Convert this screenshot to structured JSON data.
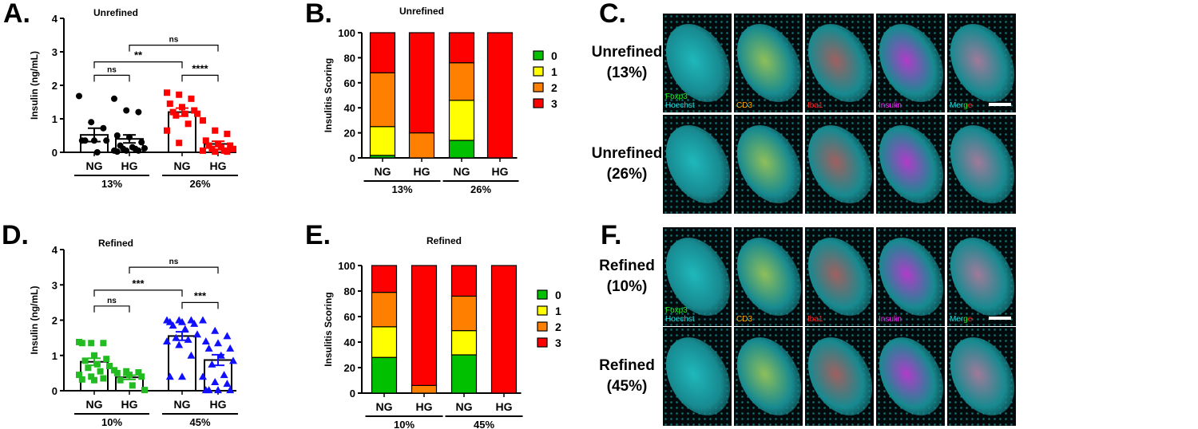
{
  "panel_letters": {
    "A": "A.",
    "B": "B.",
    "C": "C.",
    "D": "D.",
    "E": "E.",
    "F": "F."
  },
  "colors": {
    "score0": "#00c000",
    "score1": "#ffff00",
    "score2": "#ff8000",
    "score3": "#ff0000",
    "black": "#000000",
    "red": "#ff0000",
    "green": "#22bb22",
    "blue": "#1010ff"
  },
  "chart_data": [
    {
      "id": "A",
      "type": "scatter-bar",
      "title": "Unrefined",
      "ylabel": "Insulin (ng/mL)",
      "ylim": [
        0,
        4
      ],
      "yticks": [
        0,
        1,
        2,
        3,
        4
      ],
      "categories": [
        "NG",
        "HG",
        "NG",
        "HG"
      ],
      "groups": [
        {
          "label": "13%",
          "span": [
            0,
            1
          ]
        },
        {
          "label": "26%",
          "span": [
            2,
            3
          ]
        }
      ],
      "series": [
        {
          "category": 0,
          "color": "#000000",
          "marker": "circle",
          "mean": 0.52,
          "sem": 0.2,
          "points": [
            1.68,
            0.9,
            0.72,
            0.35,
            0.35,
            0.35,
            0.35,
            0.0
          ]
        },
        {
          "category": 1,
          "color": "#000000",
          "marker": "circle",
          "mean": 0.4,
          "sem": 0.12,
          "points": [
            1.6,
            1.25,
            1.2,
            0.5,
            0.45,
            0.3,
            0.2,
            0.15,
            0.12,
            0.1,
            0.1,
            0.05,
            0.05,
            0.05,
            0.02
          ]
        },
        {
          "category": 2,
          "color": "#ff0000",
          "marker": "square",
          "mean": 1.2,
          "sem": 0.12,
          "points": [
            1.78,
            1.72,
            1.6,
            1.45,
            1.35,
            1.25,
            1.2,
            1.15,
            1.15,
            1.1,
            0.85,
            0.65,
            0.28
          ]
        },
        {
          "category": 3,
          "color": "#ff0000",
          "marker": "square",
          "mean": 0.25,
          "sem": 0.08,
          "points": [
            0.95,
            0.65,
            0.55,
            0.35,
            0.25,
            0.2,
            0.2,
            0.15,
            0.1,
            0.1,
            0.05,
            0.05,
            0.02,
            0.02
          ]
        }
      ],
      "significance": [
        {
          "from": 0,
          "to": 1,
          "y": 2.3,
          "label": "ns"
        },
        {
          "from": 0,
          "to": 2,
          "y": 2.7,
          "label": "**"
        },
        {
          "from": 2,
          "to": 3,
          "y": 2.3,
          "label": "****"
        },
        {
          "from": 1,
          "to": 3,
          "y": 3.2,
          "label": "ns"
        }
      ]
    },
    {
      "id": "B",
      "type": "stacked-bar",
      "title": "Unrefined",
      "ylabel": "Insulitis Scoring",
      "ylim": [
        0,
        100
      ],
      "yticks": [
        0,
        20,
        40,
        60,
        80,
        100
      ],
      "categories": [
        "NG",
        "HG",
        "NG",
        "HG"
      ],
      "groups": [
        {
          "label": "13%",
          "span": [
            0,
            1
          ]
        },
        {
          "label": "26%",
          "span": [
            2,
            3
          ]
        }
      ],
      "legend": [
        "0",
        "1",
        "2",
        "3"
      ],
      "legend_position": "right",
      "values": [
        [
          2,
          23,
          43,
          32
        ],
        [
          0,
          0,
          20,
          80
        ],
        [
          14,
          32,
          30,
          24
        ],
        [
          0,
          0,
          0,
          100
        ]
      ]
    },
    {
      "id": "D",
      "type": "scatter-bar",
      "title": "Refined",
      "ylabel": "Insulin (ng/mL)",
      "ylim": [
        0,
        4
      ],
      "yticks": [
        0,
        1,
        2,
        3,
        4
      ],
      "categories": [
        "NG",
        "HG",
        "NG",
        "HG"
      ],
      "groups": [
        {
          "label": "10%",
          "span": [
            0,
            1
          ]
        },
        {
          "label": "45%",
          "span": [
            2,
            3
          ]
        }
      ],
      "series": [
        {
          "category": 0,
          "color": "#22bb22",
          "marker": "square",
          "mean": 0.82,
          "sem": 0.1,
          "points": [
            1.38,
            1.35,
            1.35,
            1.35,
            1.0,
            0.9,
            0.85,
            0.75,
            0.7,
            0.65,
            0.55,
            0.45,
            0.4,
            0.35,
            0.32,
            0.3
          ]
        },
        {
          "category": 1,
          "color": "#22bb22",
          "marker": "square",
          "mean": 0.38,
          "sem": 0.06,
          "points": [
            0.58,
            0.55,
            0.52,
            0.5,
            0.45,
            0.4,
            0.3,
            0.15,
            0.02
          ]
        },
        {
          "category": 2,
          "color": "#1010ff",
          "marker": "triangle",
          "mean": 1.55,
          "sem": 0.12,
          "points": [
            2.0,
            2.0,
            2.0,
            1.95,
            1.95,
            1.9,
            1.85,
            1.75,
            1.6,
            1.5,
            1.45,
            1.4,
            1.3,
            1.0,
            0.4,
            0.4
          ]
        },
        {
          "category": 3,
          "color": "#1010ff",
          "marker": "triangle",
          "mean": 0.87,
          "sem": 0.15,
          "points": [
            2.0,
            1.7,
            1.55,
            1.4,
            1.35,
            1.2,
            1.2,
            1.0,
            0.85,
            0.75,
            0.45,
            0.4,
            0.25,
            0.2,
            0.02,
            0.02,
            0.02,
            0.02
          ]
        }
      ],
      "significance": [
        {
          "from": 0,
          "to": 1,
          "y": 2.4,
          "label": "ns"
        },
        {
          "from": 0,
          "to": 2,
          "y": 2.85,
          "label": "***"
        },
        {
          "from": 2,
          "to": 3,
          "y": 2.5,
          "label": "***"
        },
        {
          "from": 1,
          "to": 3,
          "y": 3.5,
          "label": "ns"
        }
      ]
    },
    {
      "id": "E",
      "type": "stacked-bar",
      "title": "Refined",
      "ylabel": "Insulitis Scoring",
      "ylim": [
        0,
        100
      ],
      "yticks": [
        0,
        20,
        40,
        60,
        80,
        100
      ],
      "categories": [
        "NG",
        "HG",
        "NG",
        "HG"
      ],
      "groups": [
        {
          "label": "10%",
          "span": [
            0,
            1
          ]
        },
        {
          "label": "45%",
          "span": [
            2,
            3
          ]
        }
      ],
      "legend": [
        "0",
        "1",
        "2",
        "3"
      ],
      "legend_position": "right",
      "values": [
        [
          28,
          24,
          27,
          21
        ],
        [
          0,
          0,
          6,
          94
        ],
        [
          30,
          19,
          27,
          24
        ],
        [
          0,
          0,
          0,
          100
        ]
      ]
    }
  ],
  "micrographs": {
    "channels": [
      {
        "lines": [
          {
            "text": "Foxp3",
            "color": "#22ee22"
          },
          {
            "text": "Hoechst",
            "color": "#22dddd"
          }
        ],
        "tint": "#1fb8bc"
      },
      {
        "lines": [
          {
            "text": "CD3",
            "color": "#ffaa00"
          }
        ],
        "tint": "#8fbf5a"
      },
      {
        "lines": [
          {
            "text": "Iba1",
            "color": "#ff2020"
          }
        ],
        "tint": "#a06060"
      },
      {
        "lines": [
          {
            "text": "Insulin",
            "color": "#ff22ff"
          }
        ],
        "tint": "#b03cc8"
      },
      {
        "lines": [
          {
            "text": "Mer",
            "color": "#22dddd"
          },
          {
            "text": "g",
            "color": "#22ee22"
          },
          {
            "text": "e",
            "color": "#ff2020"
          }
        ],
        "tint": "#a07a9a"
      }
    ],
    "C_rows": [
      {
        "label1": "Unrefined",
        "label2": "(13%)"
      },
      {
        "label1": "Unrefined",
        "label2": "(26%)"
      }
    ],
    "F_rows": [
      {
        "label1": "Refined",
        "label2": "(10%)"
      },
      {
        "label1": "Refined",
        "label2": "(45%)"
      }
    ]
  }
}
